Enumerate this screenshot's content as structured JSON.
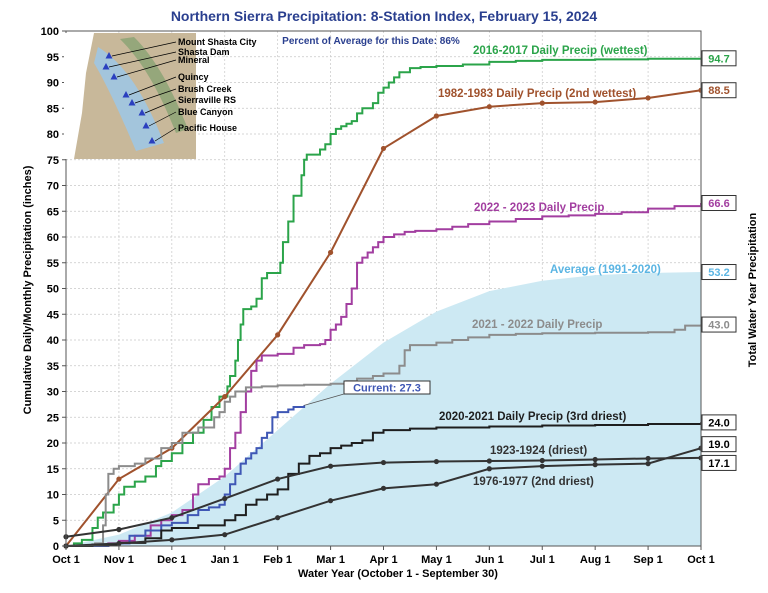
{
  "chart_data": {
    "type": "line",
    "title": "Northern Sierra Precipitation: 8-Station Index, February 15, 2024",
    "subtitle": "Percent of Average for this Date: 86%",
    "xlabel": "Water Year (October 1 - September 30)",
    "ylabel": "Cumulative Daily/Monthly Precipitation (inches)",
    "ylabel_right": "Total Water Year Precipitation",
    "x_ticks": [
      "Oct 1",
      "Nov 1",
      "Dec 1",
      "Jan 1",
      "Feb 1",
      "Mar 1",
      "Apr 1",
      "May 1",
      "Jun 1",
      "Jul 1",
      "Aug 1",
      "Sep 1",
      "Oct 1"
    ],
    "y_ticks": [
      0,
      5,
      10,
      15,
      20,
      25,
      30,
      35,
      40,
      45,
      50,
      55,
      60,
      65,
      70,
      75,
      80,
      85,
      90,
      95,
      100
    ],
    "xlim": [
      0,
      12
    ],
    "ylim": [
      0,
      100
    ],
    "grid": true,
    "x_unit": "months since Oct 1",
    "map_stations": [
      "Mount Shasta City",
      "Shasta Dam",
      "Mineral",
      "Quincy",
      "Brush Creek",
      "Sierraville RS",
      "Blue Canyon",
      "Pacific House"
    ],
    "average": {
      "name": "Average (1991-2020)",
      "end_label": "53.2",
      "color": "#cde9f3",
      "label_color": "#5bb5e3",
      "points": [
        [
          0,
          0
        ],
        [
          1,
          2.2
        ],
        [
          2,
          6.5
        ],
        [
          3,
          13.5
        ],
        [
          4,
          22.5
        ],
        [
          5,
          31.5
        ],
        [
          6,
          39.5
        ],
        [
          7,
          45.5
        ],
        [
          8,
          49.5
        ],
        [
          9,
          51.5
        ],
        [
          10,
          52.6
        ],
        [
          11,
          53.0
        ],
        [
          12,
          53.2
        ]
      ]
    },
    "series": [
      {
        "name": "2016-2017 Daily Precip (wettest)",
        "end_label": "94.7",
        "color": "#2ba44a",
        "step": true,
        "points": [
          [
            0,
            0
          ],
          [
            0.15,
            0.5
          ],
          [
            0.3,
            1.2
          ],
          [
            0.5,
            3.5
          ],
          [
            0.6,
            5.5
          ],
          [
            0.7,
            6.5
          ],
          [
            0.9,
            8
          ],
          [
            1.0,
            10
          ],
          [
            1.1,
            11.5
          ],
          [
            1.3,
            12.5
          ],
          [
            1.5,
            13.5
          ],
          [
            1.7,
            15.5
          ],
          [
            1.8,
            16.5
          ],
          [
            2.0,
            18
          ],
          [
            2.2,
            20
          ],
          [
            2.4,
            22
          ],
          [
            2.6,
            24.5
          ],
          [
            2.75,
            27
          ],
          [
            2.9,
            29
          ],
          [
            3.05,
            31
          ],
          [
            3.1,
            33
          ],
          [
            3.2,
            36
          ],
          [
            3.25,
            40
          ],
          [
            3.3,
            43
          ],
          [
            3.35,
            46
          ],
          [
            3.5,
            46.5
          ],
          [
            3.6,
            48
          ],
          [
            3.7,
            52
          ],
          [
            3.8,
            53
          ],
          [
            4.0,
            53
          ],
          [
            4.05,
            55
          ],
          [
            4.1,
            59
          ],
          [
            4.2,
            63
          ],
          [
            4.3,
            68
          ],
          [
            4.4,
            68
          ],
          [
            4.45,
            72
          ],
          [
            4.5,
            75
          ],
          [
            4.55,
            76
          ],
          [
            4.8,
            77
          ],
          [
            4.9,
            78
          ],
          [
            5.0,
            80
          ],
          [
            5.1,
            81
          ],
          [
            5.2,
            81.5
          ],
          [
            5.3,
            82
          ],
          [
            5.4,
            82.5
          ],
          [
            5.5,
            84
          ],
          [
            5.6,
            85
          ],
          [
            5.8,
            86
          ],
          [
            5.9,
            88
          ],
          [
            6.0,
            89
          ],
          [
            6.1,
            90
          ],
          [
            6.2,
            91
          ],
          [
            6.3,
            92
          ],
          [
            6.5,
            92.8
          ],
          [
            6.7,
            93
          ],
          [
            7.0,
            93.2
          ],
          [
            7.5,
            93.5
          ],
          [
            8.0,
            94
          ],
          [
            8.5,
            94.2
          ],
          [
            9.0,
            94.4
          ],
          [
            10.0,
            94.5
          ],
          [
            11.0,
            94.6
          ],
          [
            12.0,
            94.7
          ]
        ]
      },
      {
        "name": "1982-1983 Daily Precip (2nd wettest)",
        "end_label": "88.5",
        "color": "#a0522d",
        "step": false,
        "points": [
          [
            0,
            0
          ],
          [
            1,
            13
          ],
          [
            2,
            19
          ],
          [
            3,
            29
          ],
          [
            4,
            41
          ],
          [
            5,
            57
          ],
          [
            6,
            77.2
          ],
          [
            7,
            83.5
          ],
          [
            8,
            85.3
          ],
          [
            9,
            86
          ],
          [
            10,
            86.2
          ],
          [
            11,
            87
          ],
          [
            12,
            88.5
          ]
        ]
      },
      {
        "name": "2022 - 2023 Daily Precip",
        "end_label": "66.6",
        "color": "#a23ea0",
        "step": true,
        "points": [
          [
            0,
            0
          ],
          [
            0.8,
            0.5
          ],
          [
            1.0,
            1
          ],
          [
            1.3,
            2
          ],
          [
            1.6,
            4
          ],
          [
            1.8,
            5
          ],
          [
            2.0,
            6
          ],
          [
            2.2,
            7
          ],
          [
            2.4,
            10
          ],
          [
            2.5,
            12
          ],
          [
            2.7,
            13
          ],
          [
            2.9,
            13.5
          ],
          [
            3.0,
            15
          ],
          [
            3.1,
            19
          ],
          [
            3.2,
            22
          ],
          [
            3.3,
            26
          ],
          [
            3.4,
            30
          ],
          [
            3.5,
            34
          ],
          [
            3.6,
            36
          ],
          [
            3.7,
            37
          ],
          [
            4.0,
            37.3
          ],
          [
            4.3,
            38.5
          ],
          [
            4.5,
            39
          ],
          [
            4.8,
            39.2
          ],
          [
            4.9,
            40
          ],
          [
            5.0,
            42
          ],
          [
            5.1,
            43
          ],
          [
            5.2,
            44.5
          ],
          [
            5.3,
            47
          ],
          [
            5.4,
            50
          ],
          [
            5.5,
            55
          ],
          [
            5.6,
            56
          ],
          [
            5.7,
            57
          ],
          [
            5.8,
            58
          ],
          [
            5.9,
            59
          ],
          [
            6.0,
            60
          ],
          [
            6.2,
            60.5
          ],
          [
            6.4,
            61
          ],
          [
            6.6,
            61.2
          ],
          [
            7.0,
            61.5
          ],
          [
            7.3,
            62
          ],
          [
            7.6,
            62.5
          ],
          [
            8.0,
            63
          ],
          [
            8.5,
            63.5
          ],
          [
            9.0,
            64
          ],
          [
            9.5,
            64.2
          ],
          [
            10.0,
            64.5
          ],
          [
            10.5,
            64.8
          ],
          [
            11.0,
            65.5
          ],
          [
            11.5,
            66
          ],
          [
            12.0,
            66.6
          ]
        ]
      },
      {
        "name": "2021 - 2022 Daily Precip",
        "end_label": "43.0",
        "color": "#8c8c8c",
        "step": true,
        "points": [
          [
            0,
            0
          ],
          [
            0.55,
            0.5
          ],
          [
            0.7,
            4
          ],
          [
            0.75,
            10
          ],
          [
            0.8,
            14
          ],
          [
            0.9,
            15
          ],
          [
            1.0,
            15.5
          ],
          [
            1.3,
            16
          ],
          [
            1.5,
            17
          ],
          [
            1.8,
            19
          ],
          [
            2.0,
            20
          ],
          [
            2.2,
            22
          ],
          [
            2.5,
            23
          ],
          [
            2.8,
            25
          ],
          [
            2.9,
            26
          ],
          [
            3.0,
            28
          ],
          [
            3.1,
            29
          ],
          [
            3.2,
            30
          ],
          [
            3.4,
            30.8
          ],
          [
            3.7,
            31
          ],
          [
            4.0,
            31.2
          ],
          [
            4.5,
            31.3
          ],
          [
            5.0,
            31.5
          ],
          [
            5.3,
            32
          ],
          [
            5.5,
            32.5
          ],
          [
            5.8,
            33
          ],
          [
            6.0,
            33.5
          ],
          [
            6.3,
            35
          ],
          [
            6.4,
            38
          ],
          [
            6.5,
            39
          ],
          [
            7.0,
            39.5
          ],
          [
            7.3,
            40
          ],
          [
            7.6,
            40.5
          ],
          [
            8.0,
            41
          ],
          [
            8.5,
            41.2
          ],
          [
            9.0,
            41.3
          ],
          [
            10.0,
            41.4
          ],
          [
            11.0,
            41.5
          ],
          [
            11.5,
            42
          ],
          [
            11.7,
            42.8
          ],
          [
            12.0,
            43.0
          ]
        ]
      },
      {
        "name": "Current: 27.3",
        "end_label": "",
        "color": "#3f57b5",
        "step": true,
        "points": [
          [
            0,
            0
          ],
          [
            0.8,
            0.3
          ],
          [
            1.0,
            0.5
          ],
          [
            1.2,
            2
          ],
          [
            1.5,
            3
          ],
          [
            1.8,
            4
          ],
          [
            2.0,
            4.5
          ],
          [
            2.3,
            6
          ],
          [
            2.5,
            7
          ],
          [
            2.7,
            7.5
          ],
          [
            2.9,
            8
          ],
          [
            3.0,
            10
          ],
          [
            3.1,
            12
          ],
          [
            3.2,
            14
          ],
          [
            3.3,
            16
          ],
          [
            3.4,
            17
          ],
          [
            3.5,
            18
          ],
          [
            3.6,
            19
          ],
          [
            3.7,
            21
          ],
          [
            3.8,
            22
          ],
          [
            3.9,
            25
          ],
          [
            4.0,
            26
          ],
          [
            4.2,
            26.5
          ],
          [
            4.3,
            27
          ],
          [
            4.5,
            27.3
          ]
        ]
      },
      {
        "name": "2020-2021 Daily Precip (3rd driest)",
        "end_label": "24.0",
        "color": "#1e1e1e",
        "step": true,
        "points": [
          [
            0,
            0
          ],
          [
            0.5,
            0.3
          ],
          [
            1.0,
            0.6
          ],
          [
            1.5,
            1.5
          ],
          [
            1.8,
            3
          ],
          [
            2.0,
            3.5
          ],
          [
            2.5,
            4
          ],
          [
            3.0,
            5
          ],
          [
            3.2,
            6
          ],
          [
            3.4,
            8
          ],
          [
            3.6,
            9
          ],
          [
            3.8,
            10
          ],
          [
            4.0,
            11
          ],
          [
            4.2,
            14
          ],
          [
            4.4,
            16
          ],
          [
            4.6,
            17.5
          ],
          [
            4.8,
            18
          ],
          [
            5.0,
            19
          ],
          [
            5.2,
            19.5
          ],
          [
            5.4,
            20
          ],
          [
            5.6,
            20.5
          ],
          [
            5.8,
            22
          ],
          [
            6.0,
            22.5
          ],
          [
            6.5,
            22.8
          ],
          [
            7.0,
            23
          ],
          [
            8.0,
            23.2
          ],
          [
            9.0,
            23.4
          ],
          [
            10.0,
            23.5
          ],
          [
            11.0,
            23.7
          ],
          [
            12.0,
            24.0
          ]
        ]
      },
      {
        "name": "1923-1924 (driest)",
        "end_label": "17.1",
        "color": "#333333",
        "step": false,
        "points": [
          [
            0,
            1.8
          ],
          [
            1,
            3.2
          ],
          [
            2,
            5.5
          ],
          [
            3,
            9.2
          ],
          [
            4,
            13
          ],
          [
            5,
            15.5
          ],
          [
            6,
            16.2
          ],
          [
            7,
            16.4
          ],
          [
            8,
            16.5
          ],
          [
            9,
            16.6
          ],
          [
            10,
            16.8
          ],
          [
            11,
            17
          ],
          [
            12,
            17.1
          ]
        ]
      },
      {
        "name": "1976-1977 (2nd driest)",
        "end_label": "19.0",
        "color": "#333333",
        "step": false,
        "points": [
          [
            0,
            0
          ],
          [
            1,
            0.5
          ],
          [
            2,
            1.2
          ],
          [
            3,
            2.2
          ],
          [
            4,
            5.5
          ],
          [
            5,
            8.8
          ],
          [
            6,
            11.2
          ],
          [
            7,
            12.0
          ],
          [
            8,
            15.0
          ],
          [
            9,
            15.5
          ],
          [
            10,
            15.8
          ],
          [
            11,
            16.0
          ],
          [
            12,
            19.0
          ]
        ]
      }
    ]
  }
}
